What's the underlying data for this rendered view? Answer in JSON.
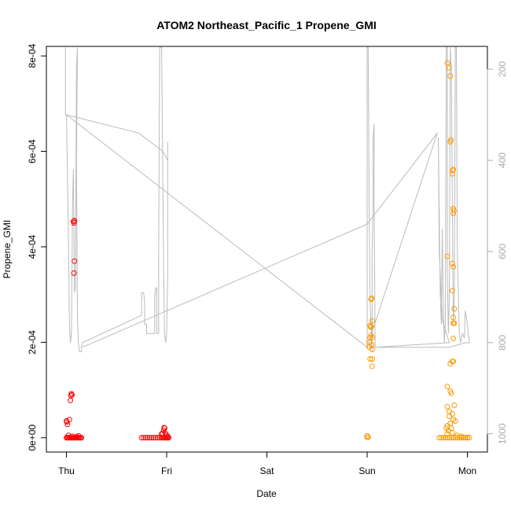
{
  "chart_data": {
    "type": "scatter",
    "title": "ATOM2 Northeast_Pacific_1 Propene_GMI",
    "xlabel": "Date",
    "ylabel": "Propene_GMI",
    "x_ticks": [
      "Thu",
      "Fri",
      "Sat",
      "Sun",
      "Mon"
    ],
    "x_range_days": [
      -0.2,
      4.2
    ],
    "ylim": [
      -3e-05,
      0.00082
    ],
    "y_ticks": [
      0,
      0.0002,
      0.0004,
      0.0006,
      0.0008
    ],
    "y_tick_labels": [
      "0e+00",
      "2e-04",
      "4e-04",
      "6e-04",
      "8e-04"
    ],
    "y2_ticks": [
      200,
      400,
      600,
      800,
      1000
    ],
    "y2_range_reversed": [
      1040,
      150
    ],
    "grid": false,
    "colors": {
      "red": "#ff0000",
      "orange": "#ff9900",
      "pressure": "#bbbbbb"
    },
    "series": [
      {
        "color": "red",
        "points": [
          [
            0.0,
            3.5e-05
          ],
          [
            0.005,
            3.3e-05
          ],
          [
            0.01,
            2.8e-05
          ],
          [
            0.0,
            0.0
          ],
          [
            0.01,
            0.0
          ],
          [
            0.02,
            0.0
          ],
          [
            0.03,
            0.0
          ],
          [
            0.04,
            0.0
          ],
          [
            0.05,
            0.0
          ],
          [
            0.06,
            0.0
          ],
          [
            0.07,
            0.0
          ],
          [
            0.08,
            0.0
          ],
          [
            0.09,
            0.0
          ],
          [
            0.1,
            0.0
          ],
          [
            0.11,
            0.0
          ],
          [
            0.12,
            0.0
          ],
          [
            0.13,
            0.0
          ],
          [
            0.14,
            0.0
          ],
          [
            0.15,
            0.0
          ],
          [
            0.03,
            3.8e-05
          ],
          [
            0.04,
            7.8e-05
          ],
          [
            0.045,
            8.8e-05
          ],
          [
            0.05,
            9.2e-05
          ],
          [
            0.055,
            9e-05
          ],
          [
            0.07,
            0.000453
          ],
          [
            0.075,
            0.00045
          ],
          [
            0.08,
            0.000455
          ],
          [
            0.08,
            0.00037
          ],
          [
            0.075,
            0.000345
          ],
          [
            0.02,
            5e-06
          ],
          [
            0.06,
            3e-06
          ],
          [
            0.1,
            2e-06
          ],
          [
            0.12,
            4e-06
          ],
          [
            0.75,
            0.0
          ],
          [
            0.77,
            0.0
          ],
          [
            0.79,
            0.0
          ],
          [
            0.81,
            0.0
          ],
          [
            0.83,
            0.0
          ],
          [
            0.85,
            0.0
          ],
          [
            0.87,
            0.0
          ],
          [
            0.89,
            0.0
          ],
          [
            0.91,
            0.0
          ],
          [
            0.93,
            0.0
          ],
          [
            0.95,
            0.0
          ],
          [
            0.96,
            0.0
          ],
          [
            0.97,
            0.0
          ],
          [
            0.98,
            0.0
          ],
          [
            0.99,
            0.0
          ],
          [
            1.0,
            0.0
          ],
          [
            1.01,
            0.0
          ],
          [
            1.02,
            0.0
          ],
          [
            0.95,
            8e-06
          ],
          [
            0.96,
            9e-06
          ],
          [
            0.97,
            1.5e-05
          ],
          [
            0.975,
            2.1e-05
          ],
          [
            0.98,
            2e-05
          ],
          [
            0.99,
            9e-06
          ],
          [
            1.0,
            5e-06
          ],
          [
            1.01,
            3e-06
          ]
        ]
      },
      {
        "color": "orange",
        "points": [
          [
            3.0,
            1e-06
          ],
          [
            3.0,
            4e-06
          ],
          [
            3.01,
            1e-06
          ],
          [
            3.02,
            0.0002
          ],
          [
            3.02,
            0.00019
          ],
          [
            3.03,
            0.000165
          ],
          [
            3.03,
            0.00021
          ],
          [
            3.03,
            0.000235
          ],
          [
            3.04,
            0.000233
          ],
          [
            3.04,
            0.00029
          ],
          [
            3.045,
            0.000292
          ],
          [
            3.05,
            0.000245
          ],
          [
            3.05,
            0.00021
          ],
          [
            3.05,
            0.000185
          ],
          [
            3.05,
            0.000165
          ],
          [
            3.05,
            0.00015
          ],
          [
            3.045,
            0.000195
          ],
          [
            3.04,
            0.000215
          ],
          [
            3.035,
            0.000232
          ],
          [
            3.72,
            0.0
          ],
          [
            3.74,
            0.0
          ],
          [
            3.76,
            0.0
          ],
          [
            3.78,
            0.0
          ],
          [
            3.8,
            0.0
          ],
          [
            3.82,
            0.0
          ],
          [
            3.84,
            0.0
          ],
          [
            3.86,
            0.0
          ],
          [
            3.88,
            0.0
          ],
          [
            3.9,
            0.0
          ],
          [
            3.92,
            0.0
          ],
          [
            3.94,
            0.0
          ],
          [
            3.96,
            0.0
          ],
          [
            3.98,
            0.0
          ],
          [
            4.0,
            0.0
          ],
          [
            4.02,
            0.0
          ],
          [
            3.8,
            0.000785
          ],
          [
            3.82,
            0.000775
          ],
          [
            3.83,
            0.000758
          ],
          [
            3.83,
            0.00062
          ],
          [
            3.835,
            0.000624
          ],
          [
            3.85,
            0.00056
          ],
          [
            3.86,
            0.000562
          ],
          [
            3.85,
            0.000553
          ],
          [
            3.86,
            0.00048
          ],
          [
            3.865,
            0.000476
          ],
          [
            3.86,
            0.00047
          ],
          [
            3.8,
            0.00038
          ],
          [
            3.85,
            0.000365
          ],
          [
            3.86,
            0.000358
          ],
          [
            3.87,
            0.00027
          ],
          [
            3.86,
            0.000252
          ],
          [
            3.87,
            0.00024
          ],
          [
            3.86,
            0.00024
          ],
          [
            3.85,
            0.000308
          ],
          [
            3.86,
            0.000208
          ],
          [
            3.85,
            0.00016
          ],
          [
            3.86,
            0.00016
          ],
          [
            3.83,
            0.000155
          ],
          [
            3.8,
            0.000107
          ],
          [
            3.83,
            9.7e-05
          ],
          [
            3.84,
            9.3e-05
          ],
          [
            3.8,
            6.5e-05
          ],
          [
            3.82,
            5.5e-05
          ],
          [
            3.85,
            5e-05
          ],
          [
            3.87,
            6.8e-05
          ],
          [
            3.86,
            3.8e-05
          ],
          [
            3.88,
            3.5e-05
          ],
          [
            3.82,
            4.5e-05
          ],
          [
            3.8,
            2.5e-05
          ],
          [
            3.84,
            2e-05
          ],
          [
            3.79,
            2e-05
          ],
          [
            3.81,
            1.5e-05
          ],
          [
            3.83,
            3e-05
          ],
          [
            3.85,
            1e-05
          ],
          [
            3.8,
            8e-06
          ],
          [
            3.9,
            5e-06
          ],
          [
            3.94,
            3e-06
          ],
          [
            3.96,
            1e-06
          ],
          [
            4.0,
            1e-06
          ]
        ]
      }
    ],
    "pressure_line": [
      [
        -0.01,
        152
      ],
      [
        -0.01,
        300
      ],
      [
        0.0,
        300
      ],
      [
        0.02,
        560
      ],
      [
        0.03,
        760
      ],
      [
        0.04,
        800
      ],
      [
        0.05,
        780
      ],
      [
        0.06,
        500
      ],
      [
        0.07,
        420
      ],
      [
        0.08,
        690
      ],
      [
        0.09,
        680
      ],
      [
        0.1,
        200
      ],
      [
        0.11,
        152
      ],
      [
        0.1,
        400
      ],
      [
        0.11,
        750
      ],
      [
        0.12,
        800
      ],
      [
        0.13,
        820
      ],
      [
        0.15,
        820
      ],
      [
        0.15,
        810
      ],
      [
        0.16,
        800
      ],
      [
        0.75,
        740
      ],
      [
        0.75,
        690
      ],
      [
        0.77,
        690
      ],
      [
        0.78,
        710
      ],
      [
        0.78,
        760
      ],
      [
        0.8,
        760
      ],
      [
        0.8,
        780
      ],
      [
        0.88,
        780
      ],
      [
        0.88,
        700
      ],
      [
        0.89,
        680
      ],
      [
        0.9,
        680
      ],
      [
        0.9,
        780
      ],
      [
        0.92,
        780
      ],
      [
        0.92,
        600
      ],
      [
        0.93,
        152
      ],
      [
        0.95,
        152
      ],
      [
        0.96,
        400
      ],
      [
        0.97,
        650
      ],
      [
        0.98,
        780
      ],
      [
        0.99,
        800
      ],
      [
        1.0,
        780
      ],
      [
        1.01,
        650
      ],
      [
        1.01,
        360
      ],
      [
        1.01,
        400
      ],
      [
        0.96,
        380
      ],
      [
        0.72,
        340
      ],
      [
        0.0,
        300
      ],
      [
        3.0,
        810
      ],
      [
        3.0,
        152
      ],
      [
        3.01,
        152
      ],
      [
        3.02,
        500
      ],
      [
        3.03,
        720
      ],
      [
        3.04,
        760
      ],
      [
        3.05,
        820
      ],
      [
        3.05,
        600
      ],
      [
        3.06,
        500
      ],
      [
        3.06,
        350
      ],
      [
        3.07,
        320
      ],
      [
        3.07,
        500
      ],
      [
        3.08,
        810
      ],
      [
        3.82,
        800
      ],
      [
        3.75,
        750
      ],
      [
        3.72,
        600
      ],
      [
        3.71,
        350
      ],
      [
        3.73,
        700
      ],
      [
        3.74,
        760
      ],
      [
        3.75,
        550
      ],
      [
        3.76,
        720
      ],
      [
        3.77,
        800
      ],
      [
        3.78,
        760
      ],
      [
        3.79,
        152
      ],
      [
        3.8,
        152
      ],
      [
        3.8,
        650
      ],
      [
        3.81,
        780
      ],
      [
        3.82,
        700
      ],
      [
        3.83,
        152
      ],
      [
        3.84,
        200
      ],
      [
        3.86,
        760
      ],
      [
        3.87,
        700
      ],
      [
        3.88,
        152
      ],
      [
        3.89,
        152
      ],
      [
        3.9,
        600
      ],
      [
        3.92,
        780
      ],
      [
        3.93,
        800
      ],
      [
        3.95,
        780
      ],
      [
        3.97,
        790
      ],
      [
        3.98,
        730
      ],
      [
        4.0,
        760
      ],
      [
        4.02,
        800
      ],
      [
        3.98,
        800
      ],
      [
        3.82,
        810
      ],
      [
        3.0,
        810
      ],
      [
        3.7,
        340
      ],
      [
        3.0,
        540
      ],
      [
        0.16,
        810
      ]
    ]
  }
}
